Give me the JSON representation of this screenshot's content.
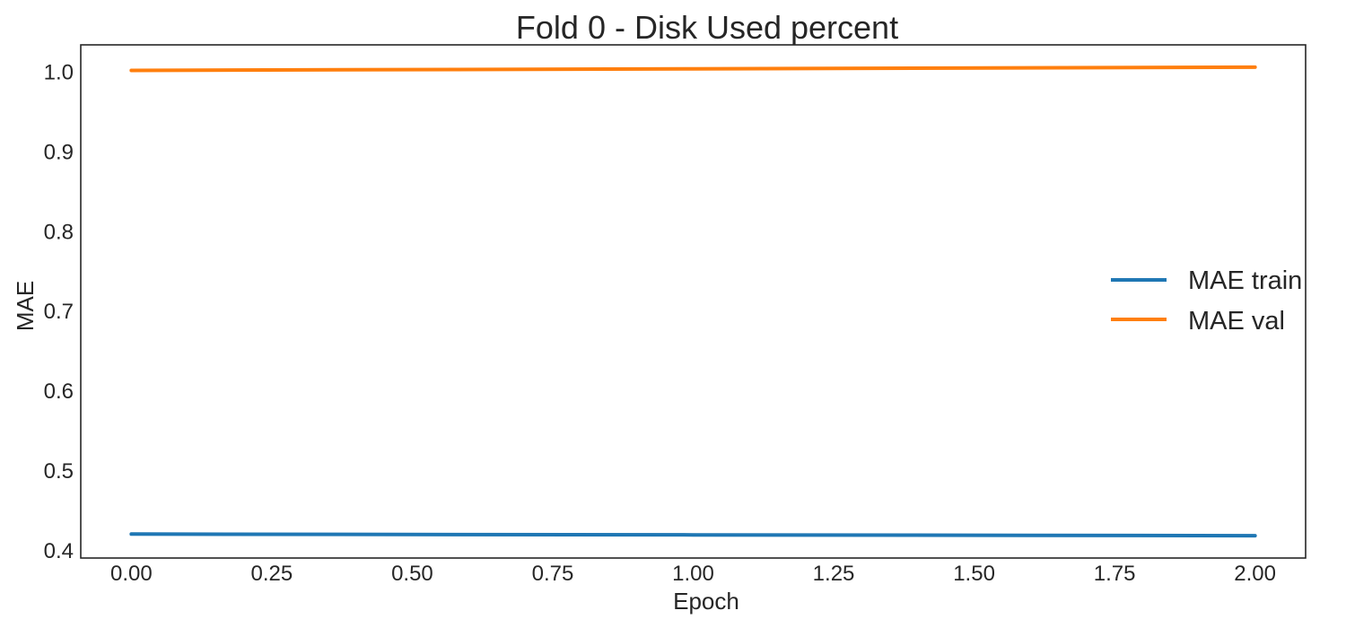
{
  "chart_data": {
    "type": "line",
    "title": "Fold 0 - Disk Used percent",
    "xlabel": "Epoch",
    "ylabel": "MAE",
    "xlim": [
      -0.09,
      2.09
    ],
    "ylim": [
      0.39,
      1.033
    ],
    "xticks": [
      0.0,
      0.25,
      0.5,
      0.75,
      1.0,
      1.25,
      1.5,
      1.75,
      2.0
    ],
    "xtick_labels": [
      "0.00",
      "0.25",
      "0.50",
      "0.75",
      "1.00",
      "1.25",
      "1.50",
      "1.75",
      "2.00"
    ],
    "yticks": [
      0.4,
      0.5,
      0.6,
      0.7,
      0.8,
      0.9,
      1.0
    ],
    "ytick_labels": [
      "0.4",
      "0.5",
      "0.6",
      "0.7",
      "0.8",
      "0.9",
      "1.0"
    ],
    "grid": false,
    "legend_position": "center-right",
    "x": [
      0,
      1,
      2
    ],
    "series": [
      {
        "name": "MAE train",
        "color": "#1f77b4",
        "values": [
          0.42,
          0.419,
          0.418
        ]
      },
      {
        "name": "MAE val",
        "color": "#ff7f0e",
        "values": [
          1.001,
          1.003,
          1.005
        ]
      }
    ]
  }
}
